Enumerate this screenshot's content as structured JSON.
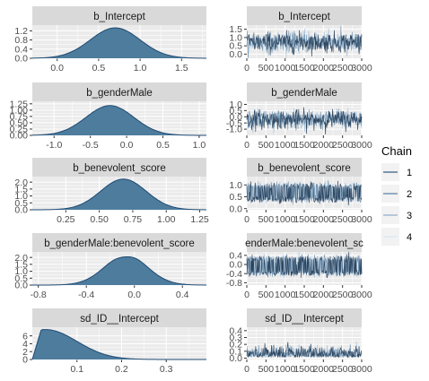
{
  "chart_data": {
    "type": "area",
    "description_free": true,
    "legend": {
      "title": "Chain",
      "placement": "right",
      "entries": [
        "1",
        "2",
        "3",
        "4"
      ],
      "colors": [
        "#4a6d8c",
        "#6c8eac",
        "#9bb7d0",
        "#dce8f3"
      ]
    },
    "colors": {
      "density_fill": "#4d7c9d",
      "density_line": "#1f4a73",
      "trace_band": "#c2d7ea",
      "trace_dark": "#1b3550",
      "strip_bg": "#d9d9d9",
      "panel_bg": "#ebebeb",
      "grid": "#ffffff"
    },
    "panels": [
      {
        "name": "b_Intercept",
        "density": {
          "title": "b_Intercept",
          "xlim": [
            -0.3,
            1.8
          ],
          "ylim": [
            0,
            1.45
          ],
          "x_ticks": [
            0.0,
            0.5,
            1.0,
            1.5
          ],
          "x_tick_labels": [
            "0.0",
            "0.5",
            "1.0",
            "1.5"
          ],
          "y_ticks": [
            0.0,
            0.4,
            0.8,
            1.2
          ],
          "y_tick_labels": [
            "0.0",
            "0.4",
            "0.8",
            "1.2"
          ],
          "mean": 0.7,
          "sd": 0.3,
          "peak": 1.33,
          "skew": 0
        },
        "trace": {
          "title": "b_Intercept",
          "xlim": [
            0,
            3000
          ],
          "ylim": [
            -0.25,
            1.75
          ],
          "x_ticks": [
            0,
            500,
            1000,
            1500,
            2000,
            2500,
            3000
          ],
          "x_tick_labels": [
            "0",
            "500",
            "1000",
            "1500",
            "2000",
            "2500",
            "3000"
          ],
          "y_ticks": [
            0.0,
            0.5,
            1.0,
            1.5
          ],
          "y_tick_labels": [
            "0.0",
            "0.5",
            "1.0",
            "1.5"
          ],
          "center": 0.72,
          "spread": 0.3,
          "bimodal": false
        }
      },
      {
        "name": "b_genderMale",
        "density": {
          "title": "b_genderMale",
          "xlim": [
            -1.3,
            1.1
          ],
          "ylim": [
            0,
            1.35
          ],
          "x_ticks": [
            -1.0,
            -0.5,
            0.0,
            0.5,
            1.0
          ],
          "x_tick_labels": [
            "-1.0",
            "-0.5",
            "0.0",
            "0.5",
            "1.0"
          ],
          "y_ticks": [
            0.0,
            0.25,
            0.5,
            0.75,
            1.0,
            1.25
          ],
          "y_tick_labels": [
            "0.00",
            "0.25",
            "0.50",
            "0.75",
            "1.00",
            "1.25"
          ],
          "mean": -0.23,
          "sd": 0.33,
          "peak": 1.18,
          "skew": 0
        },
        "trace": {
          "title": "b_genderMale",
          "xlim": [
            0,
            3000
          ],
          "ylim": [
            -1.5,
            1.25
          ],
          "x_ticks": [
            0,
            500,
            1000,
            1500,
            2000,
            2500,
            3000
          ],
          "x_tick_labels": [
            "0",
            "500",
            "1000",
            "1500",
            "2000",
            "2500",
            "3000"
          ],
          "y_ticks": [
            -1.0,
            -0.5,
            0.0,
            0.5,
            1.0
          ],
          "y_tick_labels": [
            "-1.0",
            "-0.5",
            "0.0",
            "0.5",
            "1.0"
          ],
          "center": -0.22,
          "spread": 0.38,
          "bimodal": false
        }
      },
      {
        "name": "b_benevolent_score",
        "density": {
          "title": "b_benevolent_score",
          "xlim": [
            0.0,
            1.3
          ],
          "ylim": [
            0,
            2.4
          ],
          "x_ticks": [
            0.25,
            0.5,
            0.75,
            1.0,
            1.25
          ],
          "x_tick_labels": [
            "0.25",
            "0.50",
            "0.75",
            "1.00",
            "1.25"
          ],
          "y_ticks": [
            0.0,
            0.5,
            1.0,
            1.5,
            2.0
          ],
          "y_tick_labels": [
            "0.0",
            "0.5",
            "1.0",
            "1.5",
            "2.0"
          ],
          "mean": 0.68,
          "sd": 0.17,
          "peak": 2.22,
          "skew": 0
        },
        "trace": {
          "title": "b_benevolent_score",
          "xlim": [
            0,
            3000
          ],
          "ylim": [
            -0.05,
            1.35
          ],
          "x_ticks": [
            0,
            500,
            1000,
            1500,
            2000,
            2500,
            3000
          ],
          "x_tick_labels": [
            "0",
            "500",
            "1000",
            "1500",
            "2000",
            "2500",
            "3000"
          ],
          "y_ticks": [
            0.0,
            0.5,
            1.0
          ],
          "y_tick_labels": [
            "0.0",
            "0.5",
            "1.0"
          ],
          "center": 0.68,
          "spread": 0.17,
          "bimodal": true,
          "mode_low": 0.4,
          "mode_high": 0.95
        }
      },
      {
        "name": "b_genderMale:benevolent_score",
        "density": {
          "title": "b_genderMale:benevolent_score",
          "xlim": [
            -0.85,
            0.6
          ],
          "ylim": [
            0,
            2.4
          ],
          "x_ticks": [
            -0.8,
            -0.4,
            0.0,
            0.4
          ],
          "x_tick_labels": [
            "-0.8",
            "-0.4",
            "0.0",
            "0.4"
          ],
          "y_ticks": [
            0.0,
            0.5,
            1.0,
            1.5,
            2.0
          ],
          "y_tick_labels": [
            "0.0",
            "0.5",
            "1.0",
            "1.5",
            "2.0"
          ],
          "mean": -0.07,
          "sd": 0.18,
          "peak": 2.12,
          "skew": 0
        },
        "trace": {
          "title": "enderMale:benevolent_sc",
          "xlim": [
            0,
            3000
          ],
          "ylim": [
            -0.9,
            0.55
          ],
          "x_ticks": [
            0,
            500,
            1000,
            1500,
            2000,
            2500,
            3000
          ],
          "x_tick_labels": [
            "0",
            "500",
            "1000",
            "1500",
            "2000",
            "2500",
            "3000"
          ],
          "y_ticks": [
            -0.8,
            -0.4,
            0.0,
            0.4
          ],
          "y_tick_labels": [
            "-0.8",
            "-0.4",
            "0.0",
            "0.4"
          ],
          "center": -0.07,
          "spread": 0.18,
          "bimodal": true,
          "mode_low": -0.38,
          "mode_high": 0.25
        }
      },
      {
        "name": "sd_ID__Intercept",
        "density": {
          "title": "sd_ID__Intercept",
          "xlim": [
            0.0,
            0.39
          ],
          "ylim": [
            0,
            8.2
          ],
          "x_ticks": [
            0.1,
            0.2,
            0.3
          ],
          "x_tick_labels": [
            "0.1",
            "0.2",
            "0.3"
          ],
          "y_ticks": [
            0,
            2,
            4,
            6
          ],
          "y_tick_labels": [
            "0",
            "2",
            "4",
            "6"
          ],
          "mean": 0.03,
          "sd": 0.07,
          "peak": 7.6,
          "skew": 1
        },
        "trace": {
          "title": "sd_ID__Intercept",
          "xlim": [
            0,
            3000
          ],
          "ylim": [
            -0.02,
            0.45
          ],
          "x_ticks": [
            0,
            500,
            1000,
            1500,
            2000,
            2500,
            3000
          ],
          "x_tick_labels": [
            "0",
            "500",
            "1000",
            "1500",
            "2000",
            "2500",
            "3000"
          ],
          "y_ticks": [
            0.0,
            0.1,
            0.2,
            0.3,
            0.4
          ],
          "y_tick_labels": [
            "0.0",
            "0.1",
            "0.2",
            "0.3",
            "0.4"
          ],
          "center": 0.1,
          "spread": 0.07,
          "bimodal": false,
          "skewed": true
        }
      }
    ]
  }
}
